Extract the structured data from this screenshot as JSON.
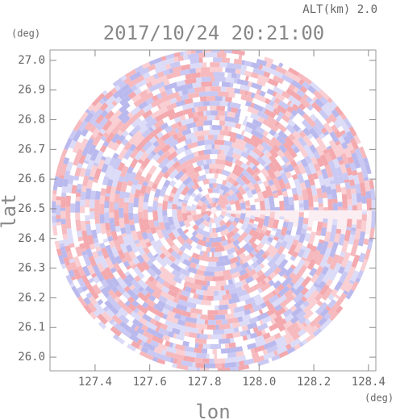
{
  "chart_data": {
    "type": "heatmap",
    "title": "2017/10/24 20:21:00",
    "subtitle": "ALT(km) 2.0",
    "x_label": "lon",
    "y_label": "lat",
    "x_unit": "(deg)",
    "y_unit": "(deg)",
    "xlim": [
      127.235,
      128.427
    ],
    "ylim": [
      25.954,
      27.035
    ],
    "xticks": [
      127.4,
      127.6,
      127.8,
      {
        "value": 128.0,
        "label": "128.0"
      },
      128.2,
      128.4
    ],
    "yticks": [
      {
        "value": 26.0,
        "label": "26.0"
      },
      26.1,
      26.2,
      26.3,
      26.4,
      26.5,
      26.6,
      26.7,
      26.8,
      26.9,
      {
        "value": 27.0,
        "label": "27.0"
      }
    ]
  }
}
